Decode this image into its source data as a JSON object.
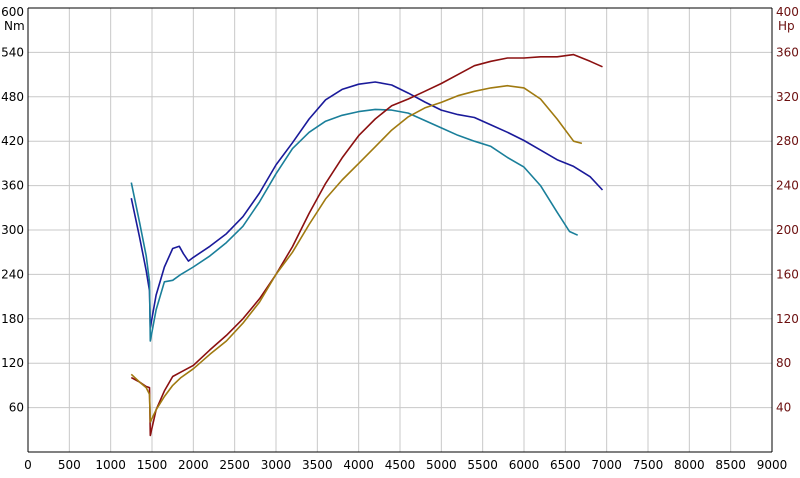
{
  "chart_data": {
    "type": "line",
    "title": "",
    "x_axis": {
      "label": "",
      "ticks": [
        0,
        500,
        1000,
        1500,
        2000,
        2500,
        3000,
        3500,
        4000,
        4500,
        5000,
        5500,
        6000,
        6500,
        7000,
        7500,
        8000,
        8500,
        9000
      ],
      "range": [
        0,
        9000
      ]
    },
    "y_left": {
      "unit": "Nm",
      "range": [
        0,
        600
      ],
      "ticks": [
        60,
        120,
        180,
        240,
        300,
        360,
        420,
        480,
        540,
        600
      ]
    },
    "y_right": {
      "unit": "Hp",
      "range": [
        0,
        400
      ],
      "ticks": [
        40,
        80,
        120,
        160,
        200,
        240,
        280,
        320,
        360,
        400
      ]
    },
    "grid": true,
    "colors": {
      "torque_1": "#1a1a9a",
      "torque_2": "#1a7f9a",
      "power_1": "#8b1010",
      "power_2": "#a07a10",
      "right_axis_text": "#6b0f0f"
    },
    "series": [
      {
        "axis": "left",
        "color": "#1a1a9a",
        "points": [
          [
            1250,
            343
          ],
          [
            1350,
            290
          ],
          [
            1430,
            245
          ],
          [
            1470,
            218
          ],
          [
            1480,
            168
          ],
          [
            1550,
            212
          ],
          [
            1650,
            250
          ],
          [
            1750,
            275
          ],
          [
            1830,
            278
          ],
          [
            1880,
            268
          ],
          [
            1940,
            258
          ],
          [
            2000,
            263
          ],
          [
            2200,
            278
          ],
          [
            2400,
            295
          ],
          [
            2600,
            318
          ],
          [
            2800,
            350
          ],
          [
            3000,
            388
          ],
          [
            3200,
            418
          ],
          [
            3400,
            450
          ],
          [
            3600,
            476
          ],
          [
            3800,
            490
          ],
          [
            4000,
            497
          ],
          [
            4200,
            500
          ],
          [
            4400,
            496
          ],
          [
            4600,
            485
          ],
          [
            4800,
            473
          ],
          [
            5000,
            462
          ],
          [
            5200,
            456
          ],
          [
            5400,
            452
          ],
          [
            5600,
            442
          ],
          [
            5800,
            432
          ],
          [
            6000,
            421
          ],
          [
            6200,
            408
          ],
          [
            6400,
            395
          ],
          [
            6600,
            386
          ],
          [
            6800,
            372
          ],
          [
            6950,
            354
          ]
        ]
      },
      {
        "axis": "left",
        "color": "#1a7f9a",
        "points": [
          [
            1250,
            364
          ],
          [
            1350,
            310
          ],
          [
            1430,
            265
          ],
          [
            1470,
            230
          ],
          [
            1480,
            150
          ],
          [
            1550,
            192
          ],
          [
            1650,
            230
          ],
          [
            1750,
            232
          ],
          [
            1850,
            240
          ],
          [
            2000,
            250
          ],
          [
            2200,
            265
          ],
          [
            2400,
            283
          ],
          [
            2600,
            305
          ],
          [
            2800,
            338
          ],
          [
            3000,
            376
          ],
          [
            3200,
            410
          ],
          [
            3400,
            432
          ],
          [
            3600,
            447
          ],
          [
            3800,
            455
          ],
          [
            4000,
            460
          ],
          [
            4200,
            463
          ],
          [
            4400,
            462
          ],
          [
            4600,
            458
          ],
          [
            4800,
            448
          ],
          [
            5000,
            438
          ],
          [
            5200,
            428
          ],
          [
            5400,
            420
          ],
          [
            5600,
            413
          ],
          [
            5800,
            398
          ],
          [
            6000,
            385
          ],
          [
            6200,
            360
          ],
          [
            6400,
            324
          ],
          [
            6550,
            298
          ],
          [
            6650,
            293
          ]
        ]
      },
      {
        "axis": "right",
        "color": "#8b1010",
        "points": [
          [
            1250,
            67
          ],
          [
            1350,
            63
          ],
          [
            1430,
            59
          ],
          [
            1470,
            58
          ],
          [
            1480,
            15
          ],
          [
            1550,
            38
          ],
          [
            1650,
            55
          ],
          [
            1750,
            68
          ],
          [
            1850,
            72
          ],
          [
            2000,
            78
          ],
          [
            2200,
            92
          ],
          [
            2400,
            105
          ],
          [
            2600,
            120
          ],
          [
            2800,
            138
          ],
          [
            3000,
            160
          ],
          [
            3200,
            185
          ],
          [
            3400,
            215
          ],
          [
            3600,
            242
          ],
          [
            3800,
            265
          ],
          [
            4000,
            285
          ],
          [
            4200,
            300
          ],
          [
            4400,
            312
          ],
          [
            4600,
            318
          ],
          [
            4800,
            325
          ],
          [
            5000,
            332
          ],
          [
            5200,
            340
          ],
          [
            5400,
            348
          ],
          [
            5600,
            352
          ],
          [
            5800,
            355
          ],
          [
            6000,
            355
          ],
          [
            6200,
            356
          ],
          [
            6400,
            356
          ],
          [
            6600,
            358
          ],
          [
            6800,
            352
          ],
          [
            6950,
            347
          ]
        ]
      },
      {
        "axis": "right",
        "color": "#a07a10",
        "points": [
          [
            1250,
            70
          ],
          [
            1350,
            63
          ],
          [
            1430,
            58
          ],
          [
            1470,
            52
          ],
          [
            1480,
            27
          ],
          [
            1550,
            38
          ],
          [
            1650,
            50
          ],
          [
            1750,
            60
          ],
          [
            1850,
            67
          ],
          [
            2000,
            75
          ],
          [
            2200,
            88
          ],
          [
            2400,
            100
          ],
          [
            2600,
            116
          ],
          [
            2800,
            135
          ],
          [
            3000,
            160
          ],
          [
            3200,
            180
          ],
          [
            3400,
            205
          ],
          [
            3600,
            228
          ],
          [
            3800,
            245
          ],
          [
            4000,
            260
          ],
          [
            4200,
            275
          ],
          [
            4400,
            290
          ],
          [
            4600,
            302
          ],
          [
            4800,
            310
          ],
          [
            5000,
            315
          ],
          [
            5200,
            321
          ],
          [
            5400,
            325
          ],
          [
            5600,
            328
          ],
          [
            5800,
            330
          ],
          [
            6000,
            328
          ],
          [
            6200,
            318
          ],
          [
            6400,
            300
          ],
          [
            6600,
            280
          ],
          [
            6700,
            278
          ]
        ]
      }
    ]
  }
}
